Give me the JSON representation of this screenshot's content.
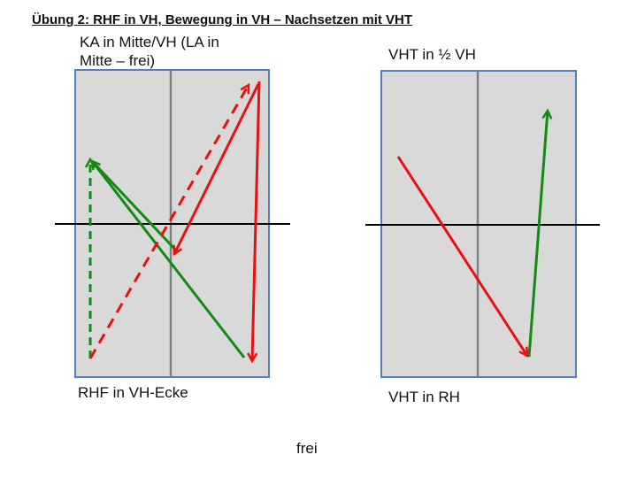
{
  "title": "Übung 2: RHF in VH, Bewegung in VH – Nachsetzen mit VHT",
  "left_panel": {
    "top_label_line1": "KA in Mitte/VH (LA in",
    "top_label_line2": "Mitte – frei)",
    "bottom_label": "RHF in VH-Ecke"
  },
  "right_panel": {
    "top_label": "VHT in ½ VH",
    "bottom_label": "VHT in RH"
  },
  "footer_label": "frei",
  "colors": {
    "field_fill": "#d9d9d9",
    "field_border": "#4f81bd",
    "center_line": "#808080",
    "net_line": "#000000",
    "arrow_red": "#e8110f",
    "arrow_green": "#138a12"
  }
}
